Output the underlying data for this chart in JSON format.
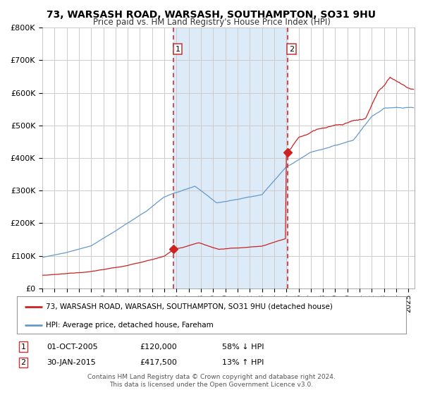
{
  "title": "73, WARSASH ROAD, WARSASH, SOUTHAMPTON, SO31 9HU",
  "subtitle": "Price paid vs. HM Land Registry's House Price Index (HPI)",
  "ylim": [
    0,
    800000
  ],
  "yticks": [
    0,
    100000,
    200000,
    300000,
    400000,
    500000,
    600000,
    700000,
    800000
  ],
  "ytick_labels": [
    "£0",
    "£100K",
    "£200K",
    "£300K",
    "£400K",
    "£500K",
    "£600K",
    "£700K",
    "£800K"
  ],
  "xlim_start": 1995.0,
  "xlim_end": 2025.5,
  "sale1_date": 2005.75,
  "sale1_price": 120000,
  "sale2_date": 2015.08,
  "sale2_price": 417500,
  "shade_color": "#ddeaf7",
  "hpi_color": "#6699cc",
  "price_color": "#cc2222",
  "background_color": "#ffffff",
  "grid_color": "#cccccc",
  "legend_house_label": "73, WARSASH ROAD, WARSASH, SOUTHAMPTON, SO31 9HU (detached house)",
  "legend_hpi_label": "HPI: Average price, detached house, Fareham",
  "annotation1_date": "01-OCT-2005",
  "annotation1_price": "£120,000",
  "annotation1_hpi": "58% ↓ HPI",
  "annotation2_date": "30-JAN-2015",
  "annotation2_price": "£417,500",
  "annotation2_hpi": "13% ↑ HPI",
  "footer1": "Contains HM Land Registry data © Crown copyright and database right 2024.",
  "footer2": "This data is licensed under the Open Government Licence v3.0."
}
